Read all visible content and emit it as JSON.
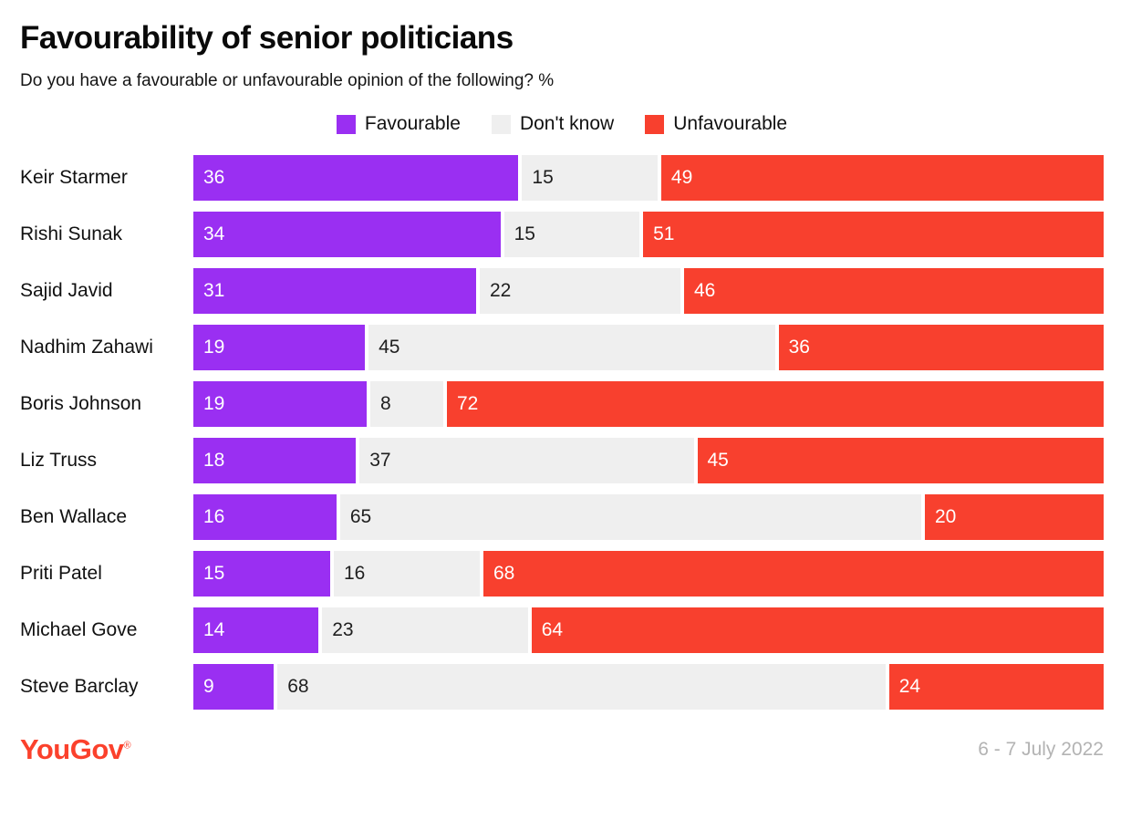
{
  "header": {
    "title": "Favourability of senior politicians",
    "subtitle": "Do you have a favourable or unfavourable opinion of the following? %"
  },
  "legend": {
    "favourable": {
      "label": "Favourable",
      "color": "#9a2ff2"
    },
    "dont_know": {
      "label": "Don't know",
      "color": "#efefef"
    },
    "unfavourable": {
      "label": "Unfavourable",
      "color": "#f8402e"
    }
  },
  "chart_data": {
    "type": "bar",
    "orientation": "horizontal",
    "stacked": true,
    "units": "percent",
    "title": "Favourability of senior politicians",
    "subtitle": "Do you have a favourable or unfavourable opinion of the following? %",
    "legend_position": "top-center",
    "categories": [
      "Keir Starmer",
      "Rishi Sunak",
      "Sajid Javid",
      "Nadhim Zahawi",
      "Boris Johnson",
      "Liz Truss",
      "Ben Wallace",
      "Priti Patel",
      "Michael Gove",
      "Steve Barclay"
    ],
    "series": [
      {
        "name": "Favourable",
        "color": "#9a2ff2",
        "values": [
          36,
          34,
          31,
          19,
          19,
          18,
          16,
          15,
          14,
          9
        ]
      },
      {
        "name": "Don't know",
        "color": "#efefef",
        "values": [
          15,
          15,
          22,
          45,
          8,
          37,
          65,
          16,
          23,
          68
        ]
      },
      {
        "name": "Unfavourable",
        "color": "#f8402e",
        "values": [
          49,
          51,
          46,
          36,
          72,
          45,
          20,
          68,
          64,
          24
        ]
      }
    ]
  },
  "rows": [
    {
      "name": "Keir Starmer",
      "fav": 36,
      "dk": 15,
      "unfav": 49
    },
    {
      "name": "Rishi Sunak",
      "fav": 34,
      "dk": 15,
      "unfav": 51
    },
    {
      "name": "Sajid Javid",
      "fav": 31,
      "dk": 22,
      "unfav": 46
    },
    {
      "name": "Nadhim Zahawi",
      "fav": 19,
      "dk": 45,
      "unfav": 36
    },
    {
      "name": "Boris Johnson",
      "fav": 19,
      "dk": 8,
      "unfav": 72
    },
    {
      "name": "Liz Truss",
      "fav": 18,
      "dk": 37,
      "unfav": 45
    },
    {
      "name": "Ben Wallace",
      "fav": 16,
      "dk": 65,
      "unfav": 20
    },
    {
      "name": "Priti Patel",
      "fav": 15,
      "dk": 16,
      "unfav": 68
    },
    {
      "name": "Michael Gove",
      "fav": 14,
      "dk": 23,
      "unfav": 64
    },
    {
      "name": "Steve Barclay",
      "fav": 9,
      "dk": 68,
      "unfav": 24
    }
  ],
  "footer": {
    "logo": "YouGov",
    "date": "6 - 7 July 2022"
  }
}
